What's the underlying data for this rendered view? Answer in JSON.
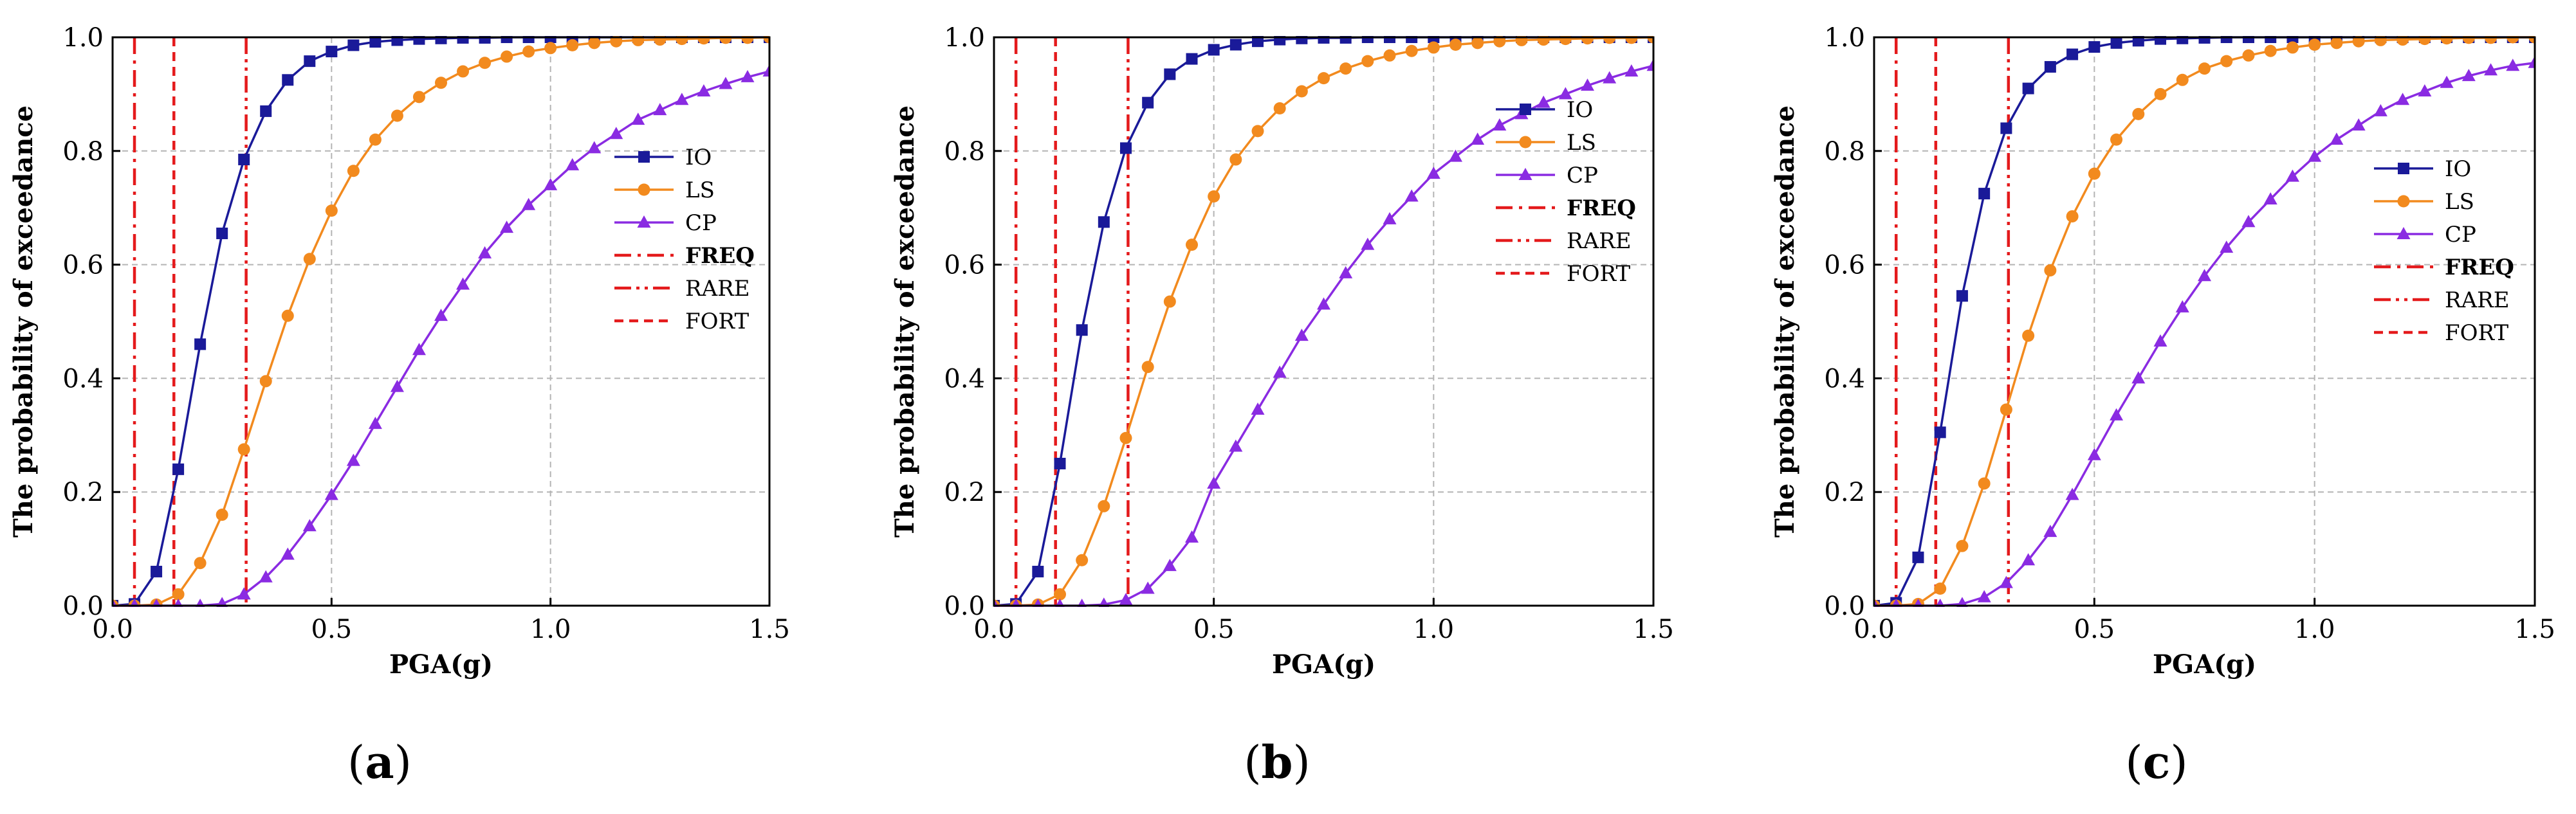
{
  "chart_data": [
    {
      "type": "line",
      "panel_label": "(a)",
      "panel_letter": "a",
      "xlabel": "PGA(g)",
      "ylabel": "The probability of exceedance",
      "xlim": [
        0,
        1.5
      ],
      "ylim": [
        0,
        1.0
      ],
      "xticks": [
        "0.0",
        "0.5",
        "1.0",
        "1.5"
      ],
      "yticks": [
        "0.0",
        "0.2",
        "0.4",
        "0.6",
        "0.8",
        "1.0"
      ],
      "grid": true,
      "legend_position": "right-middle",
      "x": [
        0,
        0.05,
        0.1,
        0.15,
        0.2,
        0.25,
        0.3,
        0.35,
        0.4,
        0.45,
        0.5,
        0.55,
        0.6,
        0.65,
        0.7,
        0.75,
        0.8,
        0.85,
        0.9,
        0.95,
        1.0,
        1.05,
        1.1,
        1.15,
        1.2,
        1.25,
        1.3,
        1.35,
        1.4,
        1.45,
        1.5
      ],
      "series": [
        {
          "name": "IO",
          "color": "#1a1a99",
          "marker": "square",
          "values": [
            0,
            0.003,
            0.06,
            0.24,
            0.46,
            0.655,
            0.785,
            0.87,
            0.925,
            0.958,
            0.975,
            0.986,
            0.992,
            0.995,
            0.997,
            0.998,
            0.999,
            0.999,
            1,
            1,
            1,
            1,
            1,
            1,
            1,
            1,
            1,
            1,
            1,
            1,
            1
          ]
        },
        {
          "name": "LS",
          "color": "#f28a1e",
          "marker": "circle",
          "values": [
            0,
            0,
            0.002,
            0.02,
            0.075,
            0.16,
            0.275,
            0.395,
            0.51,
            0.61,
            0.695,
            0.765,
            0.82,
            0.862,
            0.895,
            0.92,
            0.94,
            0.955,
            0.966,
            0.975,
            0.981,
            0.986,
            0.99,
            0.993,
            0.995,
            0.996,
            0.997,
            0.998,
            0.999,
            0.999,
            1
          ]
        },
        {
          "name": "CP",
          "color": "#8a2be2",
          "marker": "triangle",
          "values": [
            0,
            0,
            0,
            0,
            0,
            0.003,
            0.02,
            0.05,
            0.09,
            0.14,
            0.195,
            0.255,
            0.32,
            0.385,
            0.45,
            0.51,
            0.565,
            0.62,
            0.665,
            0.705,
            0.74,
            0.775,
            0.805,
            0.83,
            0.855,
            0.872,
            0.89,
            0.905,
            0.918,
            0.93,
            0.94
          ]
        }
      ],
      "vlines": [
        {
          "name": "FREQ",
          "x": 0.05,
          "color": "#e41a1c",
          "style": "dashdot",
          "bold": true
        },
        {
          "name": "RARE",
          "x": 0.305,
          "color": "#e41a1c",
          "style": "dashdotdot",
          "bold": false
        },
        {
          "name": "FORT",
          "x": 0.14,
          "color": "#e41a1c",
          "style": "dash",
          "bold": false
        }
      ]
    },
    {
      "type": "line",
      "panel_label": "(b)",
      "panel_letter": "b",
      "xlabel": "PGA(g)",
      "ylabel": "The probability of exceedance",
      "xlim": [
        0,
        1.5
      ],
      "ylim": [
        0,
        1.0
      ],
      "xticks": [
        "0.0",
        "0.5",
        "1.0",
        "1.5"
      ],
      "yticks": [
        "0.0",
        "0.2",
        "0.4",
        "0.6",
        "0.8",
        "1.0"
      ],
      "grid": true,
      "legend_position": "top-right",
      "x": [
        0,
        0.05,
        0.1,
        0.15,
        0.2,
        0.25,
        0.3,
        0.35,
        0.4,
        0.45,
        0.5,
        0.55,
        0.6,
        0.65,
        0.7,
        0.75,
        0.8,
        0.85,
        0.9,
        0.95,
        1.0,
        1.05,
        1.1,
        1.15,
        1.2,
        1.25,
        1.3,
        1.35,
        1.4,
        1.45,
        1.5
      ],
      "series": [
        {
          "name": "IO",
          "color": "#1a1a99",
          "marker": "square",
          "values": [
            0,
            0.003,
            0.06,
            0.25,
            0.485,
            0.675,
            0.805,
            0.885,
            0.935,
            0.962,
            0.978,
            0.987,
            0.993,
            0.996,
            0.998,
            0.999,
            0.999,
            1,
            1,
            1,
            1,
            1,
            1,
            1,
            1,
            1,
            1,
            1,
            1,
            1,
            1
          ]
        },
        {
          "name": "LS",
          "color": "#f28a1e",
          "marker": "circle",
          "values": [
            0,
            0,
            0.002,
            0.02,
            0.08,
            0.175,
            0.295,
            0.42,
            0.535,
            0.635,
            0.72,
            0.785,
            0.835,
            0.875,
            0.905,
            0.928,
            0.945,
            0.958,
            0.968,
            0.976,
            0.982,
            0.987,
            0.99,
            0.993,
            0.995,
            0.996,
            0.997,
            0.998,
            0.999,
            0.999,
            1
          ]
        },
        {
          "name": "CP",
          "color": "#8a2be2",
          "marker": "triangle",
          "values": [
            0,
            0,
            0,
            0,
            0,
            0.002,
            0.01,
            0.03,
            0.07,
            0.12,
            0.215,
            0.28,
            0.345,
            0.41,
            0.475,
            0.53,
            0.585,
            0.635,
            0.68,
            0.72,
            0.76,
            0.79,
            0.82,
            0.845,
            0.865,
            0.885,
            0.9,
            0.915,
            0.928,
            0.94,
            0.95
          ]
        }
      ],
      "vlines": [
        {
          "name": "FREQ",
          "x": 0.05,
          "color": "#e41a1c",
          "style": "dashdot",
          "bold": true
        },
        {
          "name": "RARE",
          "x": 0.305,
          "color": "#e41a1c",
          "style": "dashdotdot",
          "bold": false
        },
        {
          "name": "FORT",
          "x": 0.14,
          "color": "#e41a1c",
          "style": "dash",
          "bold": false
        }
      ]
    },
    {
      "type": "line",
      "panel_label": "(c)",
      "panel_letter": "c",
      "xlabel": "PGA(g)",
      "ylabel": "The probability of exceedance",
      "xlim": [
        0,
        1.5
      ],
      "ylim": [
        0,
        1.0
      ],
      "xticks": [
        "0.0",
        "0.5",
        "1.0",
        "1.5"
      ],
      "yticks": [
        "0.0",
        "0.2",
        "0.4",
        "0.6",
        "0.8",
        "1.0"
      ],
      "grid": true,
      "legend_position": "top-right",
      "x": [
        0,
        0.05,
        0.1,
        0.15,
        0.2,
        0.25,
        0.3,
        0.35,
        0.4,
        0.45,
        0.5,
        0.55,
        0.6,
        0.65,
        0.7,
        0.75,
        0.8,
        0.85,
        0.9,
        0.95,
        1.0,
        1.05,
        1.1,
        1.15,
        1.2,
        1.25,
        1.3,
        1.35,
        1.4,
        1.45,
        1.5
      ],
      "series": [
        {
          "name": "IO",
          "color": "#1a1a99",
          "marker": "square",
          "values": [
            0,
            0.005,
            0.085,
            0.305,
            0.545,
            0.725,
            0.84,
            0.91,
            0.948,
            0.97,
            0.983,
            0.99,
            0.994,
            0.997,
            0.998,
            0.999,
            1,
            1,
            1,
            1,
            1,
            1,
            1,
            1,
            1,
            1,
            1,
            1,
            1,
            1,
            1
          ]
        },
        {
          "name": "LS",
          "color": "#f28a1e",
          "marker": "circle",
          "values": [
            0,
            0,
            0.003,
            0.03,
            0.105,
            0.215,
            0.345,
            0.475,
            0.59,
            0.685,
            0.76,
            0.82,
            0.865,
            0.9,
            0.925,
            0.945,
            0.958,
            0.968,
            0.976,
            0.982,
            0.987,
            0.99,
            0.993,
            0.995,
            0.996,
            0.997,
            0.998,
            0.999,
            0.999,
            1,
            1
          ]
        },
        {
          "name": "CP",
          "color": "#8a2be2",
          "marker": "triangle",
          "values": [
            0,
            0,
            0,
            0,
            0.003,
            0.015,
            0.04,
            0.08,
            0.13,
            0.195,
            0.265,
            0.335,
            0.4,
            0.465,
            0.525,
            0.58,
            0.63,
            0.675,
            0.715,
            0.755,
            0.79,
            0.82,
            0.845,
            0.87,
            0.89,
            0.905,
            0.92,
            0.932,
            0.942,
            0.95,
            0.955
          ]
        }
      ],
      "vlines": [
        {
          "name": "FREQ",
          "x": 0.05,
          "color": "#e41a1c",
          "style": "dashdot",
          "bold": true
        },
        {
          "name": "RARE",
          "x": 0.305,
          "color": "#e41a1c",
          "style": "dashdotdot",
          "bold": false
        },
        {
          "name": "FORT",
          "x": 0.14,
          "color": "#e41a1c",
          "style": "dash",
          "bold": false
        }
      ]
    }
  ]
}
